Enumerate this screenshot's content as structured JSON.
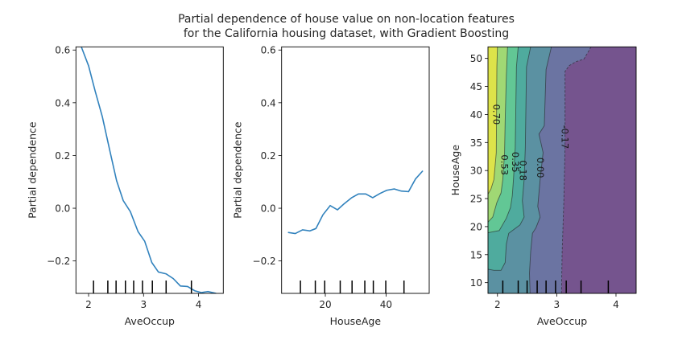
{
  "title_lines": [
    "Partial dependence of house value on non-location features",
    "for the California housing dataset, with Gradient Boosting"
  ],
  "chart_data": [
    {
      "type": "line",
      "xlabel": "AveOccup",
      "ylabel": "Partial dependence",
      "xlim": [
        1.77,
        4.45
      ],
      "ylim": [
        -0.323,
        0.612
      ],
      "xticks": [
        2,
        3,
        4
      ],
      "xtick_labels": [
        "2",
        "3",
        "4"
      ],
      "yticks": [
        -0.2,
        0.0,
        0.2,
        0.4,
        0.6
      ],
      "ytick_labels": [
        "−0.2",
        "0.0",
        "0.2",
        "0.4",
        "0.6"
      ],
      "line_color": "#3182bd",
      "x": [
        1.87,
        2.0,
        2.12,
        2.25,
        2.39,
        2.51,
        2.63,
        2.76,
        2.9,
        3.02,
        3.15,
        3.27,
        3.41,
        3.54,
        3.67,
        3.8,
        3.93,
        4.05,
        4.17,
        4.32
      ],
      "y": [
        0.611,
        0.54,
        0.444,
        0.347,
        0.215,
        0.104,
        0.029,
        -0.013,
        -0.089,
        -0.125,
        -0.206,
        -0.242,
        -0.249,
        -0.267,
        -0.295,
        -0.297,
        -0.313,
        -0.32,
        -0.316,
        -0.323
      ],
      "rug_deciles": [
        2.09,
        2.35,
        2.5,
        2.67,
        2.82,
        2.98,
        3.16,
        3.41,
        3.87
      ]
    },
    {
      "type": "line",
      "xlabel": "HouseAge",
      "ylabel": "Partial dependence",
      "xlim": [
        5.6,
        54.2
      ],
      "ylim": [
        -0.323,
        0.612
      ],
      "xticks": [
        20,
        40
      ],
      "xtick_labels": [
        "20",
        "40"
      ],
      "yticks": [
        -0.2,
        0.0,
        0.2,
        0.4,
        0.6
      ],
      "ytick_labels": [
        "−0.2",
        "0.0",
        "0.2",
        "0.4",
        "0.6"
      ],
      "line_color": "#3182bd",
      "x": [
        7.7,
        10.1,
        12.5,
        14.9,
        16.9,
        19.2,
        21.6,
        24.0,
        26.0,
        28.7,
        30.9,
        33.3,
        35.6,
        38.0,
        40.2,
        42.7,
        45.0,
        47.4,
        49.7,
        52.1
      ],
      "y": [
        -0.092,
        -0.096,
        -0.082,
        -0.086,
        -0.077,
        -0.025,
        0.01,
        -0.006,
        0.015,
        0.04,
        0.054,
        0.054,
        0.04,
        0.056,
        0.068,
        0.073,
        0.065,
        0.063,
        0.111,
        0.142
      ],
      "rug_deciles": [
        11.8,
        16.7,
        19.8,
        24.9,
        28.8,
        33.0,
        35.8,
        39.9,
        45.9
      ]
    },
    {
      "type": "contour",
      "xlabel": "AveOccup",
      "ylabel": "HouseAge",
      "xlim": [
        1.84,
        4.34
      ],
      "ylim": [
        8.09,
        52.06
      ],
      "xticks": [
        2,
        3,
        4
      ],
      "xtick_labels": [
        "2",
        "3",
        "4"
      ],
      "yticks": [
        10,
        15,
        20,
        25,
        30,
        35,
        40,
        45,
        50
      ],
      "ytick_labels": [
        "10",
        "15",
        "20",
        "25",
        "30",
        "35",
        "40",
        "45",
        "50"
      ],
      "background_color": "#75548e",
      "levels": [
        {
          "label": "-0.17",
          "color": "#6b74a2",
          "dashed": true,
          "x": [
            3.58,
            3.46,
            3.32,
            3.21,
            3.14,
            3.14,
            3.12,
            3.09,
            3.08
          ],
          "y": [
            52.06,
            49.9,
            49.4,
            48.7,
            47.7,
            34.1,
            24.6,
            15,
            8.09
          ]
        },
        {
          "label": "0.00",
          "color": "#5b91a2",
          "dashed": false,
          "x": [
            2.91,
            2.82,
            2.79,
            2.7,
            2.77,
            2.72,
            2.68,
            2.72,
            2.65,
            2.59,
            2.56,
            2.54,
            2.55
          ],
          "y": [
            52.06,
            48,
            38,
            36.5,
            33.2,
            28.4,
            23.6,
            21.7,
            19.8,
            18.8,
            15.5,
            11.7,
            8.09
          ]
        },
        {
          "label": "0.18",
          "color": "#4fab9e",
          "dashed": false,
          "x": [
            2.56,
            2.49,
            2.47,
            2.45,
            2.42,
            2.45,
            2.38,
            2.19,
            2.15,
            2.13,
            2.06,
            1.94,
            1.84
          ],
          "y": [
            52.06,
            48.5,
            34.1,
            28.4,
            24.6,
            21.7,
            20.3,
            18.8,
            16.9,
            13.6,
            12.2,
            12.2,
            12.4
          ]
        },
        {
          "label": "0.35",
          "color": "#62c795",
          "dashed": false,
          "x": [
            2.35,
            2.32,
            2.3,
            2.27,
            2.25,
            2.22,
            2.15,
            2.03,
            1.84
          ],
          "y": [
            52.06,
            48.5,
            34.1,
            28.4,
            25.5,
            23.4,
            21.5,
            19.3,
            18.9
          ]
        },
        {
          "label": "0.53",
          "color": "#a0d874",
          "dashed": false,
          "x": [
            2.17,
            2.15,
            2.13,
            2.12,
            2.09,
            2.06,
            1.99,
            1.92,
            1.84
          ],
          "y": [
            52.06,
            47,
            38.9,
            33.2,
            28.4,
            26,
            24.3,
            21.7,
            20.8
          ]
        },
        {
          "label": "0.70",
          "color": "#dde34a",
          "dashed": false,
          "x": [
            2.0,
            1.99,
            1.98,
            1.94,
            1.89,
            1.84
          ],
          "y": [
            52.06,
            48.5,
            33.2,
            28.4,
            26.7,
            25.8
          ]
        }
      ],
      "rug_deciles": [
        2.09,
        2.35,
        2.5,
        2.67,
        2.82,
        2.98,
        3.16,
        3.41,
        3.87
      ]
    }
  ]
}
